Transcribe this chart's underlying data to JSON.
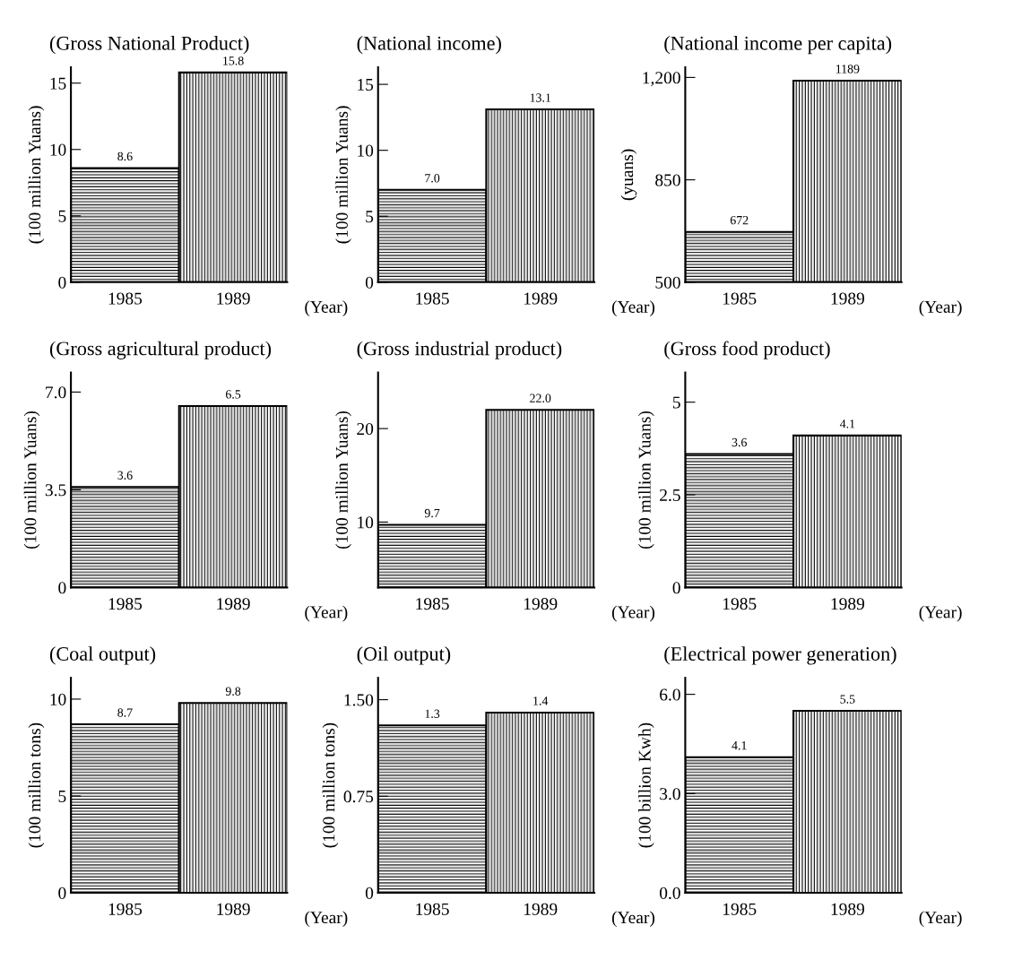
{
  "chart_data": [
    {
      "type": "bar",
      "title": "(Gross National Product)",
      "ylabel": "(100 million Yuans)",
      "xlabel": "(Year)",
      "categories": [
        "1985",
        "1989"
      ],
      "values": [
        8.6,
        15.8
      ],
      "colors": [
        "#000000",
        "#000000"
      ],
      "ylim": [
        0,
        16.2
      ],
      "yticks": [
        0,
        5,
        10,
        15
      ],
      "data_labels": true
    },
    {
      "type": "bar",
      "title": "(National income)",
      "ylabel": "(100 million Yuans)",
      "xlabel": "(Year)",
      "categories": [
        "1985",
        "1989"
      ],
      "values": [
        7.0,
        13.1
      ],
      "colors": [
        "#000000",
        "#000000"
      ],
      "ylim": [
        0,
        16.3
      ],
      "yticks": [
        0,
        5,
        10,
        15
      ],
      "value_labels": [
        "7.0",
        "13.1"
      ]
    },
    {
      "type": "bar",
      "title": "(National income per capita)",
      "ylabel": "(yuans)",
      "xlabel": "(Year)",
      "categories": [
        "1985",
        "1989"
      ],
      "values": [
        672,
        1189
      ],
      "colors": [
        "#000000",
        "#000000"
      ],
      "ylim": [
        500,
        1235
      ],
      "yticks": [
        500,
        850,
        {
          "value": 1200,
          "label": "1,200"
        }
      ],
      "data_labels": true
    },
    {
      "type": "bar",
      "title": "(Gross agricultural product)",
      "ylabel": "(100 million Yuans)",
      "xlabel": "(Year)",
      "categories": [
        "1985",
        "1989"
      ],
      "values": [
        3.6,
        6.5
      ],
      "colors": [
        "#000000",
        "#000000"
      ],
      "ylim": [
        0,
        7.7
      ],
      "yticks": [
        0,
        3.5,
        {
          "value": 7,
          "label": "7.0"
        }
      ],
      "data_labels": true
    },
    {
      "type": "bar",
      "title": "(Gross industrial product)",
      "ylabel": "(100 million Yuans)",
      "xlabel": "(Year)",
      "categories": [
        "1985",
        "1989"
      ],
      "values": [
        9.7,
        22.0
      ],
      "colors": [
        "#000000",
        "#000000"
      ],
      "ylim": [
        3,
        26
      ],
      "yticks": [
        10,
        20
      ],
      "value_labels": [
        "9.7",
        "22.0"
      ]
    },
    {
      "type": "bar",
      "title": "(Gross food product)",
      "ylabel": "(100 million Yuans)",
      "xlabel": "(Year)",
      "categories": [
        "1985",
        "1989"
      ],
      "values": [
        3.6,
        4.1
      ],
      "colors": [
        "#000000",
        "#000000"
      ],
      "ylim": [
        0,
        5.8
      ],
      "yticks": [
        0,
        2.5,
        5
      ],
      "data_labels": true
    },
    {
      "type": "bar",
      "title": "(Coal output)",
      "ylabel": "(100 million tons)",
      "xlabel": "(Year)",
      "categories": [
        "1985",
        "1989"
      ],
      "values": [
        8.7,
        9.8
      ],
      "colors": [
        "#000000",
        "#000000"
      ],
      "ylim": [
        0,
        11.1
      ],
      "yticks": [
        0,
        5,
        10
      ],
      "data_labels": true
    },
    {
      "type": "bar",
      "title": "(Oil output)",
      "ylabel": "(100 million tons)",
      "xlabel": "(Year)",
      "categories": [
        "1985",
        "1989"
      ],
      "values": [
        1.3,
        1.4
      ],
      "colors": [
        "#000000",
        "#000000"
      ],
      "ylim": [
        0,
        1.67
      ],
      "yticks": [
        0,
        0.75,
        {
          "value": 1.5,
          "label": "1.50"
        }
      ],
      "data_labels": true
    },
    {
      "type": "bar",
      "title": "(Electrical power generation)",
      "ylabel": "(100 billion Kwh)",
      "xlabel": "(Year)",
      "categories": [
        "1985",
        "1989"
      ],
      "values": [
        4.1,
        5.5
      ],
      "colors": [
        "#000000",
        "#000000"
      ],
      "ylim": [
        0,
        6.5
      ],
      "yticks": [
        {
          "value": 0,
          "label": "0.0"
        },
        {
          "value": 3,
          "label": "3.0"
        },
        {
          "value": 6,
          "label": "6.0"
        }
      ],
      "data_labels": true
    }
  ]
}
